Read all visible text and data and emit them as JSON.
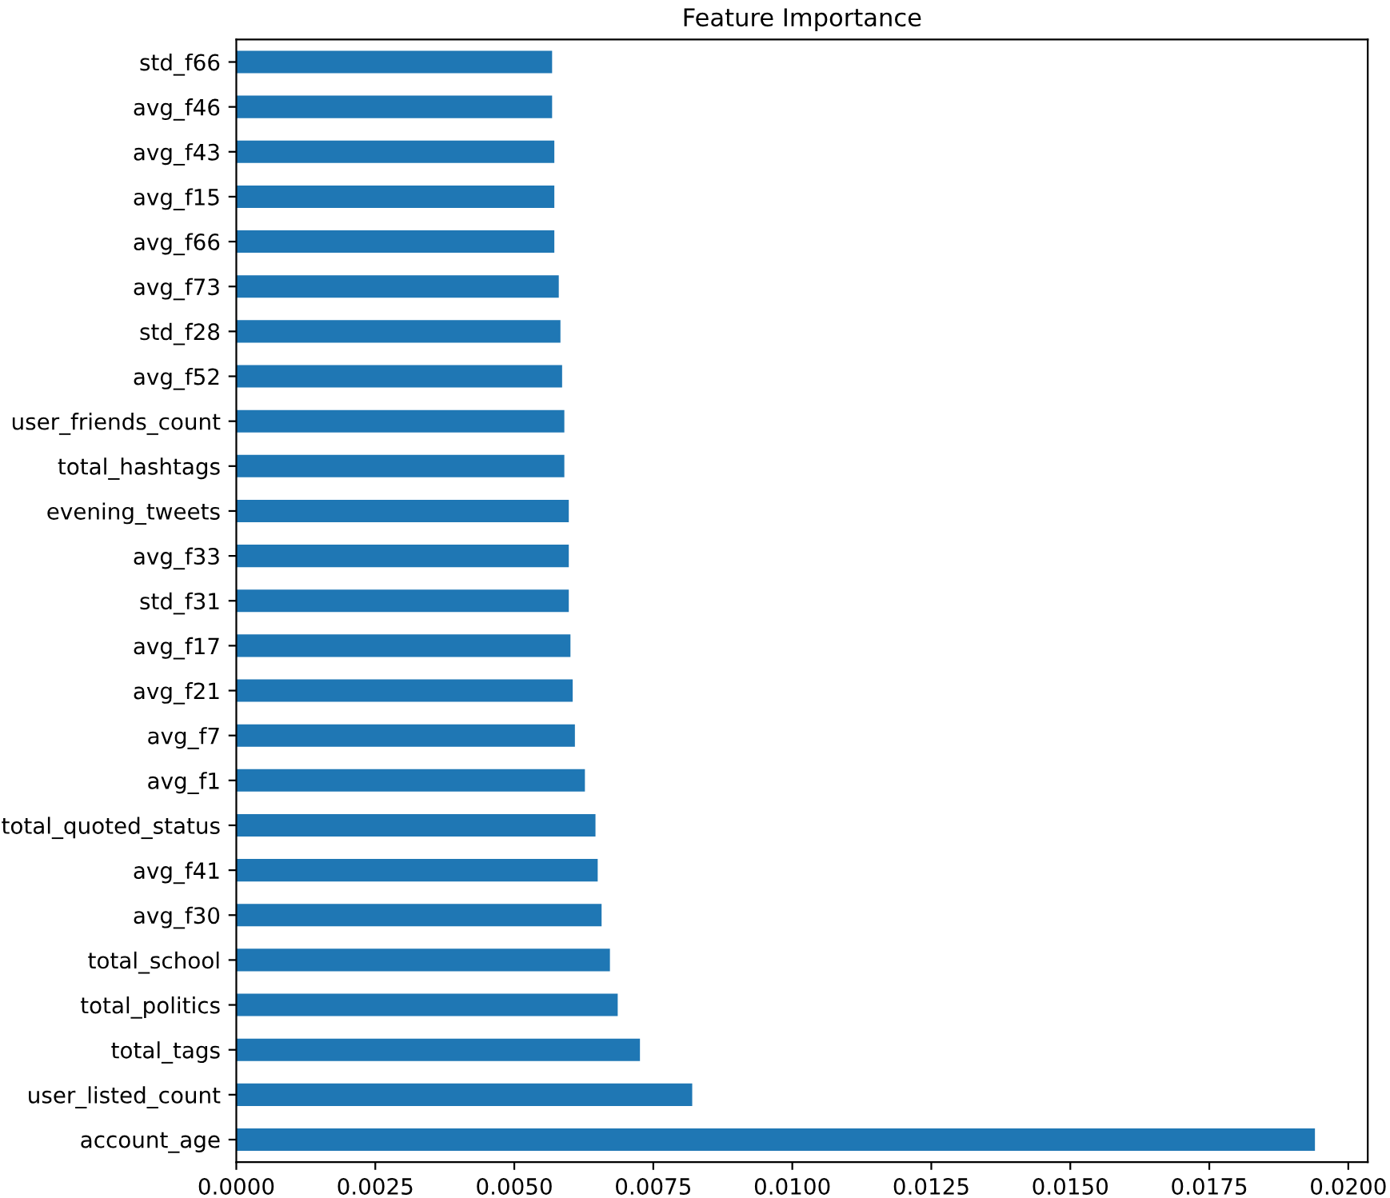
{
  "chart_data": {
    "type": "bar",
    "orientation": "horizontal",
    "title": "Feature Importance",
    "categories": [
      "std_f66",
      "avg_f46",
      "avg_f43",
      "avg_f15",
      "avg_f66",
      "avg_f73",
      "std_f28",
      "avg_f52",
      "user_friends_count",
      "total_hashtags",
      "evening_tweets",
      "avg_f33",
      "std_f31",
      "avg_f17",
      "avg_f21",
      "avg_f7",
      "avg_f1",
      "total_quoted_status",
      "avg_f41",
      "avg_f30",
      "total_school",
      "total_politics",
      "total_tags",
      "user_listed_count",
      "account_age"
    ],
    "values": [
      0.00568,
      0.00568,
      0.00572,
      0.00572,
      0.00572,
      0.0058,
      0.00583,
      0.00586,
      0.0059,
      0.0059,
      0.00598,
      0.00598,
      0.00598,
      0.00601,
      0.00605,
      0.00609,
      0.00627,
      0.00646,
      0.0065,
      0.00657,
      0.00672,
      0.00686,
      0.00726,
      0.0082,
      0.0194
    ],
    "color": "#1f77b4",
    "xlim": [
      0,
      0.02035
    ],
    "xticks": [
      {
        "value": 0,
        "label": "0.0000"
      },
      {
        "value": 0.0025,
        "label": "0.0025"
      },
      {
        "value": 0.005,
        "label": "0.0050"
      },
      {
        "value": 0.0075,
        "label": "0.0075"
      },
      {
        "value": 0.01,
        "label": "0.0100"
      },
      {
        "value": 0.0125,
        "label": "0.0125"
      },
      {
        "value": 0.015,
        "label": "0.0150"
      },
      {
        "value": 0.0175,
        "label": "0.0175"
      },
      {
        "value": 0.02,
        "label": "0.0200"
      }
    ],
    "grid": false,
    "legend": false
  }
}
